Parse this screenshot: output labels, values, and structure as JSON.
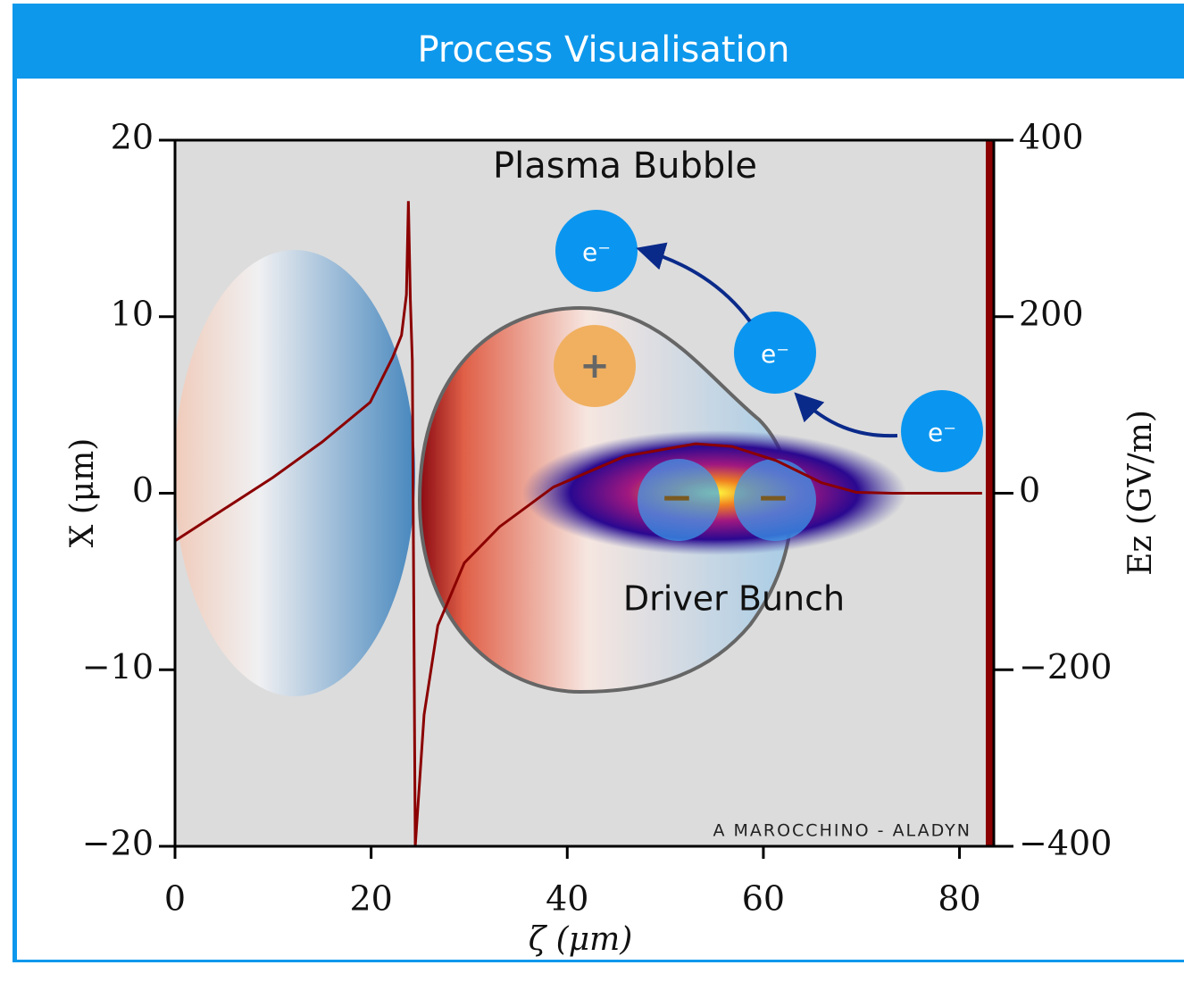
{
  "header": {
    "title": "Process Visualisation"
  },
  "chart_data": {
    "type": "line",
    "xlabel": "ζ (μm)",
    "ylabel": "X (μm)",
    "y2label": "Ez (GV/m)",
    "xlim": [
      0,
      83.5
    ],
    "ylim": [
      -20,
      20
    ],
    "y2lim": [
      -400,
      400
    ],
    "xticks": [
      0,
      20,
      40,
      60,
      80
    ],
    "yticks": [
      {
        "value": -20,
        "label": "−20"
      },
      {
        "value": -10,
        "label": "−10"
      },
      0,
      10,
      20
    ],
    "y2ticks": [
      {
        "value": -400,
        "label": "−400"
      },
      {
        "value": -200,
        "label": "−200"
      },
      0,
      200,
      400
    ],
    "x": [
      0,
      5,
      10,
      15,
      19.9,
      22.2,
      23.1,
      23.6,
      23.8,
      24.0,
      24.2,
      24.5,
      25.4,
      26.8,
      29.5,
      33.1,
      38.6,
      45.9,
      53.1,
      56.8,
      61.3,
      65.9,
      69.5,
      73.2,
      82.3
    ],
    "series": [
      {
        "name": "Ez",
        "color": "#8b0000",
        "axis": "y2",
        "values": [
          -54,
          -18,
          18,
          58,
          103,
          154,
          179,
          225,
          331,
          219,
          150,
          -400,
          -251,
          -150,
          -79,
          -38,
          7,
          42,
          56,
          53,
          37,
          12,
          1,
          0,
          0
        ]
      }
    ],
    "annotations": {
      "plasma_bubble": "Plasma Bubble",
      "driver_bunch": "Driver Bunch",
      "electrons": [
        "e⁻",
        "e⁻",
        "e⁻"
      ],
      "ion": "+",
      "bunch_charges": [
        "−",
        "−"
      ],
      "credit": "A MAROCCHINO - ALADYN"
    }
  }
}
